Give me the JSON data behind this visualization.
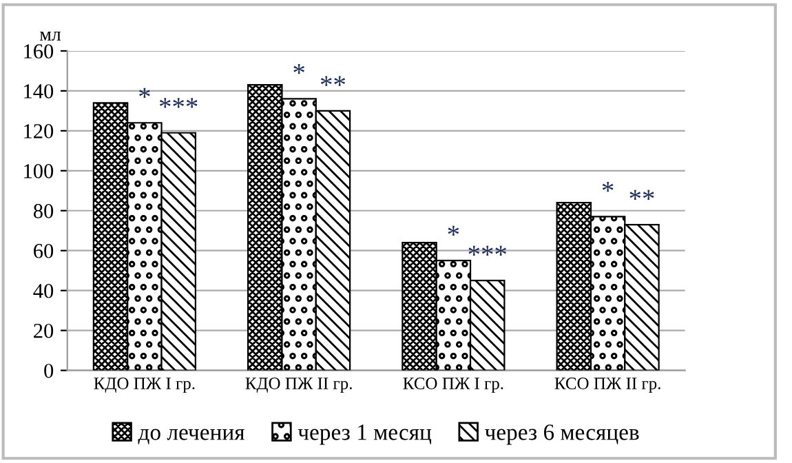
{
  "chart_data": {
    "type": "bar",
    "ylabel": "мл",
    "categories": [
      "КДО ПЖ I гр.",
      "КДО ПЖ II гр.",
      "КСО ПЖ I гр.",
      "КСО ПЖ II гр."
    ],
    "series": [
      {
        "name": "до лечения",
        "color": "#000000",
        "values": [
          134,
          143,
          64,
          84
        ]
      },
      {
        "name": "через 1 месяц",
        "color": "#000000",
        "values": [
          124,
          136,
          55,
          77
        ]
      },
      {
        "name": "через 6 месяцев",
        "color": "#000000",
        "values": [
          119,
          130,
          45,
          73
        ]
      }
    ],
    "ylim": [
      0,
      160
    ],
    "yticks": [
      0,
      20,
      40,
      60,
      80,
      100,
      120,
      140,
      160
    ],
    "grid": "y",
    "legend": "bottom",
    "annotations": [
      "*",
      "***",
      "*",
      "**",
      "*",
      "***",
      "*",
      "**"
    ]
  }
}
